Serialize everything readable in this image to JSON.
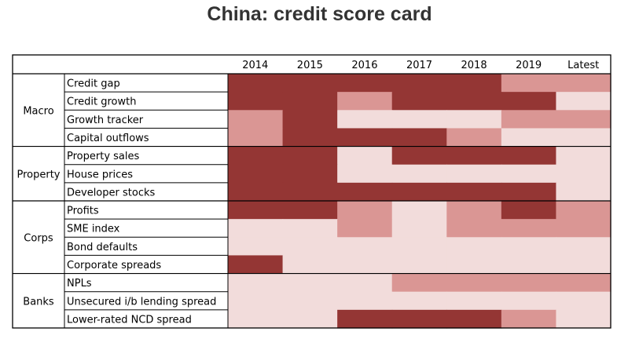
{
  "title": "China: credit score card",
  "chart_data": {
    "type": "heatmap",
    "title": "China: credit score card",
    "columns": [
      "2014",
      "2015",
      "2016",
      "2017",
      "2018",
      "2019",
      "Latest"
    ],
    "color_scale": {
      "1": "#943634",
      "2": "#da9694",
      "3": "#f2dcdb"
    },
    "groups": [
      {
        "name": "Macro",
        "rows": [
          {
            "label": "Credit gap",
            "values": [
              1,
              1,
              1,
              1,
              1,
              2,
              2
            ]
          },
          {
            "label": "Credit growth",
            "values": [
              1,
              1,
              2,
              1,
              1,
              1,
              3
            ]
          },
          {
            "label": "Growth tracker",
            "values": [
              2,
              1,
              3,
              3,
              3,
              2,
              2
            ]
          },
          {
            "label": "Capital outflows",
            "values": [
              2,
              1,
              1,
              1,
              2,
              3,
              3
            ]
          }
        ]
      },
      {
        "name": "Property",
        "rows": [
          {
            "label": "Property sales",
            "values": [
              1,
              1,
              3,
              1,
              1,
              1,
              3
            ]
          },
          {
            "label": "House prices",
            "values": [
              1,
              1,
              3,
              3,
              3,
              3,
              3
            ]
          },
          {
            "label": "Developer stocks",
            "values": [
              1,
              1,
              1,
              1,
              1,
              1,
              3
            ]
          }
        ]
      },
      {
        "name": "Corps",
        "rows": [
          {
            "label": "Profits",
            "values": [
              1,
              1,
              2,
              3,
              2,
              1,
              2
            ]
          },
          {
            "label": "SME index",
            "values": [
              3,
              3,
              2,
              3,
              2,
              2,
              2
            ]
          },
          {
            "label": "Bond defaults",
            "values": [
              3,
              3,
              3,
              3,
              3,
              3,
              3
            ]
          },
          {
            "label": "Corporate spreads",
            "values": [
              1,
              3,
              3,
              3,
              3,
              3,
              3
            ]
          }
        ]
      },
      {
        "name": "Banks",
        "rows": [
          {
            "label": "NPLs",
            "values": [
              3,
              3,
              3,
              2,
              2,
              2,
              2
            ]
          },
          {
            "label": "Unsecured i/b lending spread",
            "values": [
              3,
              3,
              3,
              3,
              3,
              3,
              3
            ]
          },
          {
            "label": "Lower-rated NCD spread",
            "values": [
              3,
              3,
              1,
              1,
              1,
              2,
              3
            ]
          }
        ]
      }
    ]
  }
}
